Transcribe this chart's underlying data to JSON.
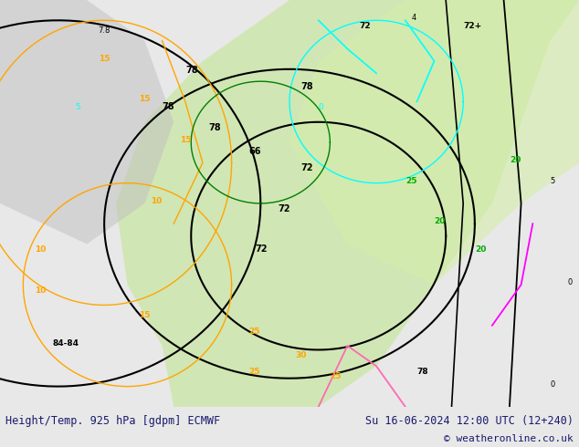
{
  "title_left": "Height/Temp. 925 hPa [gdpm] ECMWF",
  "title_right": "Su 16-06-2024 12:00 UTC (12+240)",
  "copyright": "© weatheronline.co.uk",
  "bg_color": "#e8e8e8",
  "fig_width": 6.34,
  "fig_height": 4.9,
  "dpi": 100,
  "bottom_text_color": "#1a1a6e",
  "bottom_bar_color": "#ffffff",
  "font_family": "monospace"
}
